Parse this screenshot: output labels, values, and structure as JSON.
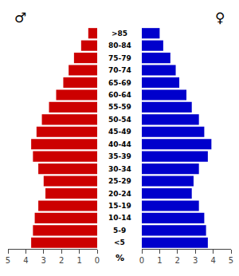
{
  "chart_data": {
    "type": "bar",
    "orientation": "horizontal",
    "categories": [
      "<5",
      "5-9",
      "10-14",
      "15-19",
      "20-24",
      "25-29",
      "30-34",
      "35-39",
      "40-44",
      "45-49",
      "50-54",
      "55-59",
      "60-64",
      "65-69",
      "70-74",
      "75-79",
      "80-84",
      ">85"
    ],
    "series": [
      {
        "name": "♂",
        "color": "#CC0000",
        "values": [
          3.7,
          3.6,
          3.5,
          3.3,
          2.9,
          3.0,
          3.3,
          3.6,
          3.7,
          3.4,
          3.1,
          2.7,
          2.3,
          1.9,
          1.6,
          1.3,
          0.9,
          0.5
        ]
      },
      {
        "name": "♀",
        "color": "#0000CC",
        "values": [
          3.7,
          3.6,
          3.5,
          3.2,
          2.8,
          2.9,
          3.2,
          3.7,
          3.9,
          3.5,
          3.2,
          2.8,
          2.5,
          2.1,
          1.9,
          1.6,
          1.2,
          1.0
        ]
      }
    ],
    "xlabel": "%",
    "xlim": [
      0,
      5
    ],
    "xticks": [
      0,
      1,
      2,
      3,
      4,
      5
    ],
    "grid": false
  }
}
